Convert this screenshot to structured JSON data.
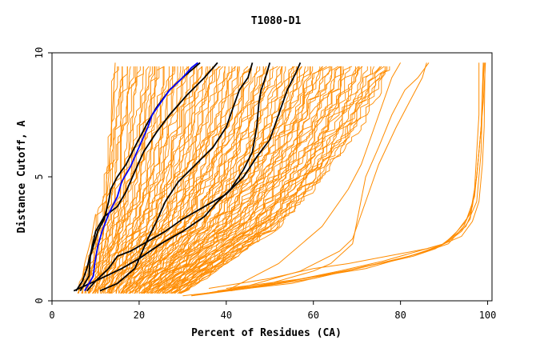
{
  "chart_data": {
    "type": "line",
    "title": "T1080-D1",
    "xlabel": "Percent of Residues (CA)",
    "ylabel": "Distance Cutoff, A",
    "xlim": [
      0,
      101
    ],
    "ylim": [
      0,
      10
    ],
    "xticks": [
      "0",
      "20",
      "40",
      "60",
      "80",
      "100"
    ],
    "yticks": [
      "0",
      "5",
      "10"
    ],
    "grid": false,
    "legend": "none",
    "colors": {
      "orange": "#ff8c00",
      "black": "#000000",
      "blue": "#0000ff"
    },
    "band": {
      "description_none": "",
      "count": 120,
      "left": [
        [
          6,
          0.4
        ],
        [
          8,
          1.5
        ],
        [
          10,
          3
        ],
        [
          11.5,
          5
        ],
        [
          13,
          8
        ],
        [
          14,
          9.6
        ]
      ],
      "right": [
        [
          30,
          0.3
        ],
        [
          40,
          1.5
        ],
        [
          52,
          3
        ],
        [
          62,
          5
        ],
        [
          70,
          7
        ],
        [
          78,
          9.6
        ]
      ]
    },
    "series": [
      {
        "color": "orange",
        "points": [
          [
            10,
            0.4
          ],
          [
            12,
            3
          ],
          [
            13,
            5
          ],
          [
            14,
            8
          ],
          [
            14.5,
            9.6
          ]
        ]
      },
      {
        "color": "orange",
        "points": [
          [
            6.5,
            0.4
          ],
          [
            7.5,
            1.5
          ],
          [
            9,
            2.5
          ],
          [
            10,
            3.5
          ]
        ]
      },
      {
        "color": "orange",
        "points": [
          [
            40,
            0.4
          ],
          [
            52,
            1.5
          ],
          [
            62,
            3
          ],
          [
            68,
            4.5
          ],
          [
            71,
            5.5
          ],
          [
            74,
            7
          ],
          [
            78,
            9
          ],
          [
            80,
            9.6
          ]
        ]
      },
      {
        "color": "orange",
        "points": [
          [
            32,
            0.2
          ],
          [
            45,
            0.6
          ],
          [
            57,
            1.2
          ],
          [
            66,
            2
          ],
          [
            69,
            2.5
          ],
          [
            72,
            4
          ],
          [
            75,
            5.5
          ],
          [
            79,
            7
          ],
          [
            82,
            8
          ],
          [
            85,
            9
          ],
          [
            86,
            9.6
          ]
        ]
      },
      {
        "color": "orange",
        "points": [
          [
            41,
            0.4
          ],
          [
            50,
            0.7
          ],
          [
            60,
            1.2
          ],
          [
            64,
            1.5
          ],
          [
            69,
            2.3
          ],
          [
            72,
            5
          ],
          [
            75,
            6.2
          ],
          [
            78,
            7.5
          ],
          [
            81,
            8.5
          ],
          [
            84,
            9
          ],
          [
            86.5,
            9.6
          ]
        ]
      },
      {
        "color": "orange",
        "points": [
          [
            30,
            0.2
          ],
          [
            40,
            0.4
          ],
          [
            55,
            0.7
          ],
          [
            65,
            1.1
          ],
          [
            72,
            1.4
          ],
          [
            78,
            1.6
          ],
          [
            83,
            1.8
          ],
          [
            88,
            2.1
          ],
          [
            91,
            2.4
          ],
          [
            94,
            2.8
          ],
          [
            96,
            3.3
          ],
          [
            97,
            4.5
          ],
          [
            97.5,
            6
          ],
          [
            98,
            7.5
          ],
          [
            98,
            9.6
          ]
        ]
      },
      {
        "color": "orange",
        "points": [
          [
            32,
            0.2
          ],
          [
            45,
            0.5
          ],
          [
            60,
            0.9
          ],
          [
            70,
            1.3
          ],
          [
            80,
            1.7
          ],
          [
            86,
            2
          ],
          [
            91,
            2.3
          ],
          [
            94.5,
            3
          ],
          [
            96.5,
            3.8
          ],
          [
            97.5,
            5
          ],
          [
            98.5,
            7
          ],
          [
            99,
            9.6
          ]
        ]
      },
      {
        "color": "orange",
        "points": [
          [
            35,
            0.3
          ],
          [
            52,
            0.7
          ],
          [
            66,
            1.2
          ],
          [
            76,
            1.6
          ],
          [
            84,
            2
          ],
          [
            90,
            2.3
          ],
          [
            93,
            2.8
          ],
          [
            96,
            3.5
          ],
          [
            97.5,
            5
          ],
          [
            98.5,
            7
          ],
          [
            99.2,
            9.6
          ]
        ]
      },
      {
        "color": "orange",
        "points": [
          [
            38,
            0.4
          ],
          [
            55,
            0.8
          ],
          [
            70,
            1.3
          ],
          [
            82,
            1.8
          ],
          [
            89,
            2.2
          ],
          [
            92,
            2.6
          ],
          [
            95,
            3.2
          ],
          [
            97,
            4.2
          ],
          [
            98,
            6
          ],
          [
            99,
            8
          ],
          [
            99.5,
            9.6
          ]
        ]
      },
      {
        "color": "orange",
        "points": [
          [
            40,
            0.5
          ],
          [
            58,
            0.9
          ],
          [
            72,
            1.3
          ],
          [
            84,
            1.9
          ],
          [
            90,
            2.3
          ],
          [
            95,
            3
          ],
          [
            97.5,
            4
          ],
          [
            98.5,
            6
          ],
          [
            99,
            9.6
          ]
        ]
      },
      {
        "color": "orange",
        "points": [
          [
            36,
            0.5
          ],
          [
            50,
            0.9
          ],
          [
            60,
            1.3
          ],
          [
            68,
            1.5
          ],
          [
            74,
            1.7
          ],
          [
            80,
            1.9
          ],
          [
            86,
            2.1
          ],
          [
            90,
            2.3
          ],
          [
            94,
            2.6
          ],
          [
            96.5,
            3.2
          ],
          [
            98,
            4
          ],
          [
            98.8,
            5.5
          ],
          [
            99.2,
            7
          ],
          [
            99.4,
            9.6
          ]
        ]
      },
      {
        "color": "black",
        "points": [
          [
            6.5,
            0.4
          ],
          [
            8.5,
            1
          ],
          [
            8.8,
            1.8
          ],
          [
            9.5,
            2.2
          ],
          [
            10.5,
            2.8
          ],
          [
            12,
            3.3
          ],
          [
            13,
            4
          ],
          [
            13.5,
            4.5
          ],
          [
            15,
            5
          ],
          [
            17,
            5.5
          ],
          [
            19,
            6.2
          ],
          [
            22,
            7.2
          ],
          [
            24,
            7.8
          ],
          [
            27,
            8.5
          ],
          [
            30,
            9
          ],
          [
            32,
            9.3
          ],
          [
            34,
            9.6
          ]
        ]
      },
      {
        "color": "black",
        "points": [
          [
            5.5,
            0.4
          ],
          [
            7,
            0.8
          ],
          [
            8,
            1.3
          ],
          [
            9,
            2
          ],
          [
            10,
            2.8
          ],
          [
            12,
            3.4
          ],
          [
            15,
            3.8
          ],
          [
            17,
            4.4
          ],
          [
            18.5,
            5
          ],
          [
            21,
            6
          ],
          [
            24,
            6.8
          ],
          [
            27,
            7.5
          ],
          [
            31,
            8.3
          ],
          [
            35,
            9
          ],
          [
            38,
            9.6
          ]
        ]
      },
      {
        "color": "black",
        "points": [
          [
            5,
            0.4
          ],
          [
            10,
            0.8
          ],
          [
            16,
            1.3
          ],
          [
            20,
            1.7
          ],
          [
            25,
            2.3
          ],
          [
            30,
            2.8
          ],
          [
            35,
            3.4
          ],
          [
            38,
            4
          ],
          [
            41,
            4.5
          ],
          [
            44,
            5.3
          ],
          [
            46,
            6
          ],
          [
            47,
            7
          ],
          [
            47.5,
            8
          ],
          [
            48,
            8.5
          ],
          [
            49,
            9
          ],
          [
            50,
            9.6
          ]
        ]
      },
      {
        "color": "black",
        "points": [
          [
            11,
            0.4
          ],
          [
            15,
            0.7
          ],
          [
            19,
            1.3
          ],
          [
            22,
            2.5
          ],
          [
            24,
            3.2
          ],
          [
            26,
            4
          ],
          [
            29,
            4.8
          ],
          [
            33,
            5.5
          ],
          [
            37,
            6.2
          ],
          [
            40,
            7
          ],
          [
            42,
            8
          ],
          [
            43,
            8.5
          ],
          [
            45,
            9
          ],
          [
            46,
            9.6
          ]
        ]
      },
      {
        "color": "black",
        "points": [
          [
            8,
            0.4
          ],
          [
            10,
            0.8
          ],
          [
            13,
            1.3
          ],
          [
            15,
            1.8
          ],
          [
            18,
            2
          ],
          [
            22,
            2.4
          ],
          [
            26,
            2.8
          ],
          [
            30,
            3.3
          ],
          [
            35,
            3.8
          ],
          [
            40,
            4.3
          ],
          [
            44,
            5
          ],
          [
            47,
            5.8
          ],
          [
            50,
            6.5
          ],
          [
            52,
            7.5
          ],
          [
            54,
            8.5
          ],
          [
            56,
            9.2
          ],
          [
            57,
            9.6
          ]
        ]
      },
      {
        "color": "blue",
        "points": [
          [
            7.5,
            0.4
          ],
          [
            9.5,
            1
          ],
          [
            9.8,
            1.5
          ],
          [
            10.5,
            2.2
          ],
          [
            11.5,
            2.8
          ],
          [
            13,
            3.5
          ],
          [
            15,
            4.2
          ],
          [
            16,
            4.8
          ],
          [
            18,
            5.4
          ],
          [
            20,
            6.2
          ],
          [
            22,
            7
          ],
          [
            23,
            7.5
          ],
          [
            25,
            8
          ],
          [
            27,
            8.5
          ],
          [
            30,
            9
          ],
          [
            32,
            9.4
          ],
          [
            33.5,
            9.6
          ]
        ]
      }
    ]
  }
}
